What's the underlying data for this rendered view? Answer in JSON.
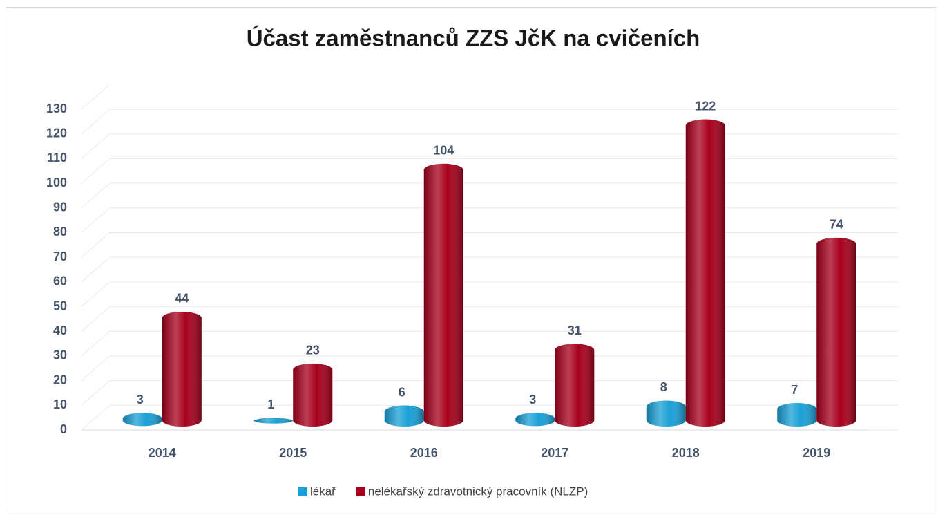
{
  "chart_data": {
    "type": "bar3d",
    "title": "Účast zaměstnanců ZZS JčK na cvičeních",
    "categories": [
      "2014",
      "2015",
      "2016",
      "2017",
      "2018",
      "2019"
    ],
    "series": [
      {
        "name": "lékař",
        "color": "#1aa0d6",
        "values": [
          3,
          1,
          6,
          3,
          8,
          7
        ]
      },
      {
        "name": "nelékařský zdravotnický pracovník (NLZP)",
        "color": "#a8001c",
        "values": [
          44,
          23,
          104,
          31,
          122,
          74
        ]
      }
    ],
    "ylim": [
      0,
      130
    ],
    "yticks": [
      0,
      10,
      20,
      30,
      40,
      50,
      60,
      70,
      80,
      90,
      100,
      110,
      120,
      130
    ],
    "grid": true,
    "legend": "bottom"
  }
}
